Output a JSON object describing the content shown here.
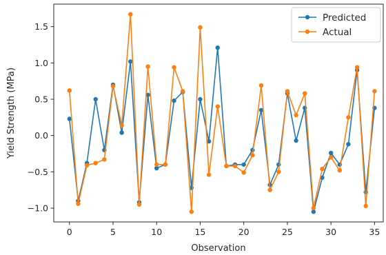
{
  "chart_data": {
    "type": "line",
    "title": "",
    "xlabel": "Observation",
    "ylabel": "Yield Strength (MPa)",
    "xlim": [
      -1.8,
      36.0
    ],
    "ylim": [
      -1.19,
      1.81
    ],
    "xticks": [
      0,
      5,
      10,
      15,
      20,
      25,
      30,
      35
    ],
    "yticks": [
      -1.0,
      -0.5,
      0.0,
      0.5,
      1.0,
      1.5
    ],
    "ytick_labels": [
      "−1.0",
      "−0.5",
      "0.0",
      "0.5",
      "1.0",
      "1.5"
    ],
    "grid": false,
    "legend": "upper right",
    "x": [
      0,
      1,
      2,
      3,
      4,
      5,
      6,
      7,
      8,
      9,
      10,
      11,
      12,
      13,
      14,
      15,
      16,
      17,
      18,
      19,
      20,
      21,
      22,
      23,
      24,
      25,
      26,
      27,
      28,
      29,
      30,
      31,
      32,
      33,
      34,
      35
    ],
    "series": [
      {
        "name": "Predicted",
        "color": "#1f77b4",
        "values": [
          0.23,
          -0.9,
          -0.38,
          0.5,
          -0.2,
          0.7,
          0.04,
          1.02,
          -0.92,
          0.56,
          -0.45,
          -0.4,
          0.48,
          0.6,
          -0.72,
          0.5,
          -0.08,
          1.21,
          -0.42,
          -0.4,
          -0.4,
          -0.2,
          0.35,
          -0.68,
          -0.4,
          0.58,
          -0.07,
          0.38,
          -1.05,
          -0.58,
          -0.24,
          -0.4,
          -0.12,
          0.9,
          -0.78,
          0.38
        ]
      },
      {
        "name": "Actual",
        "color": "#ff7f0e",
        "values": [
          0.62,
          -0.94,
          -0.41,
          -0.38,
          -0.33,
          0.68,
          0.14,
          1.67,
          -0.95,
          0.95,
          -0.4,
          -0.4,
          0.94,
          0.61,
          -1.05,
          1.49,
          -0.54,
          0.4,
          -0.42,
          -0.42,
          -0.51,
          -0.27,
          0.69,
          -0.75,
          -0.5,
          0.61,
          0.28,
          0.58,
          -1.0,
          -0.46,
          -0.3,
          -0.48,
          0.25,
          0.94,
          -0.97,
          0.61
        ]
      }
    ]
  }
}
